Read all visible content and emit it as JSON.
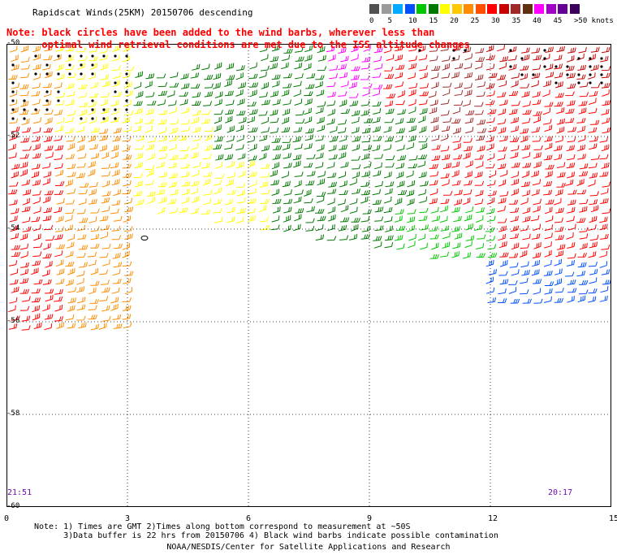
{
  "title": "Rapidscat Winds(25KM) 20150706 descending",
  "note_red": "Note: black circles have been added to the wind barbs, wherever less than\n      optimal wind retrieval conditions are met due to the ISS altitude changes",
  "scale": {
    "unit": "knots",
    "swatches": [
      {
        "color": "#505050"
      },
      {
        "color": "#9a9a9a"
      },
      {
        "color": "#00aaff"
      },
      {
        "color": "#0050ff"
      },
      {
        "color": "#00c800"
      },
      {
        "color": "#007800"
      },
      {
        "color": "#ffff00"
      },
      {
        "color": "#ffc800"
      },
      {
        "color": "#ff8c00"
      },
      {
        "color": "#ff5000"
      },
      {
        "color": "#ff0000"
      },
      {
        "color": "#c80000"
      },
      {
        "color": "#a02828"
      },
      {
        "color": "#603010"
      },
      {
        "color": "#ff00ff"
      },
      {
        "color": "#a000c8"
      },
      {
        "color": "#640096"
      },
      {
        "color": "#3c005a"
      }
    ],
    "labels": [
      "0",
      "5",
      "10",
      "15",
      "20",
      "25",
      "30",
      "35",
      "40",
      "45",
      ">50 knots"
    ]
  },
  "map": {
    "lon_range": [
      0,
      15
    ],
    "lat_range": [
      -60,
      -50
    ],
    "lat_labels": [
      "-50",
      "-52",
      "-54",
      "-56",
      "-58",
      "-60"
    ],
    "lon_labels": [
      "0",
      "3",
      "6",
      "9",
      "12",
      "15"
    ],
    "time_labels": {
      "left": "21:51",
      "right": "20:17"
    }
  },
  "footnotes": "Note: 1) Times are GMT 2)Times along bottom correspond to measurement at ~50S\n      3)Data buffer is 22 hrs from 20150706 4) Black wind barbs indicate possible contamination",
  "credit": "NOAA/NESDIS/Center for Satellite Applications and Research"
}
